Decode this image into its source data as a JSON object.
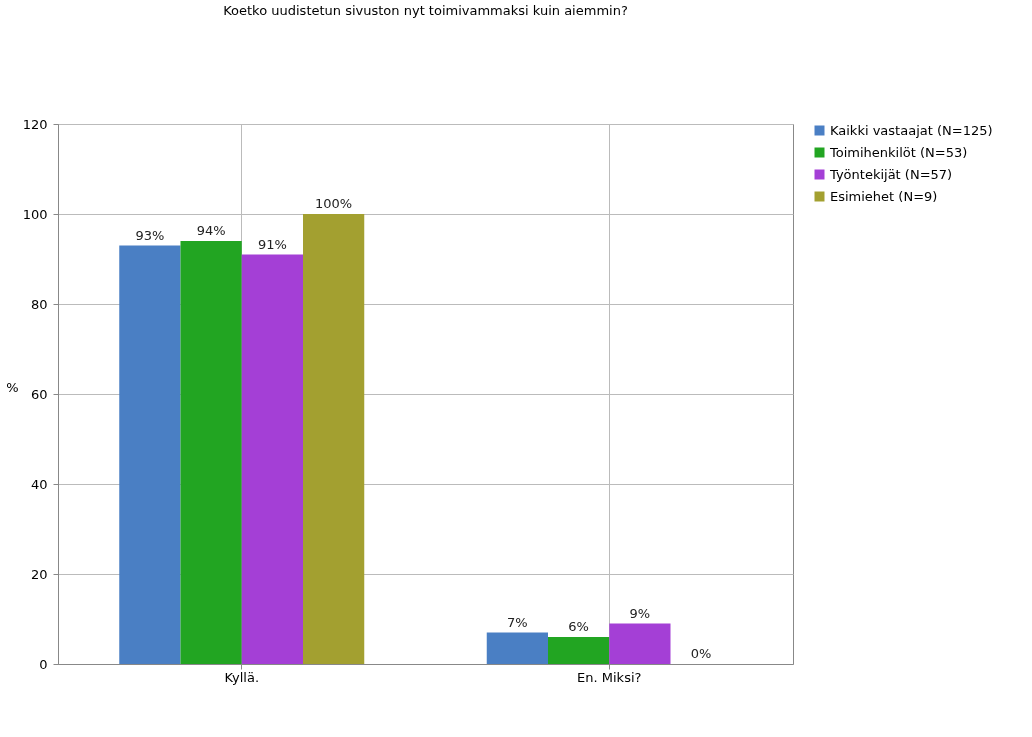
{
  "chart_data": {
    "type": "bar",
    "title": "Koetko uudistetun sivuston nyt toimivammaksi kuin aiemmin?",
    "ylabel": "%",
    "categories": [
      "Kyllä.",
      "En. Miksi?"
    ],
    "series": [
      {
        "name": "Kaikki vastaajat (N=125)",
        "color": "#4a7fc4",
        "values": [
          93,
          7
        ]
      },
      {
        "name": "Toimihenkilöt (N=53)",
        "color": "#22a522",
        "values": [
          94,
          6
        ]
      },
      {
        "name": "Työntekijät (N=57)",
        "color": "#a43fd6",
        "values": [
          91,
          9
        ]
      },
      {
        "name": "Esimiehet (N=9)",
        "color": "#a3a030",
        "values": [
          100,
          0
        ]
      }
    ],
    "value_labels": [
      [
        "93%",
        "7%"
      ],
      [
        "94%",
        "6%"
      ],
      [
        "91%",
        "9%"
      ],
      [
        "100%",
        "0%"
      ]
    ],
    "ylim": [
      0,
      120
    ],
    "yticks": [
      0,
      20,
      40,
      60,
      80,
      100,
      120
    ],
    "grid": true,
    "legend": "top right"
  }
}
